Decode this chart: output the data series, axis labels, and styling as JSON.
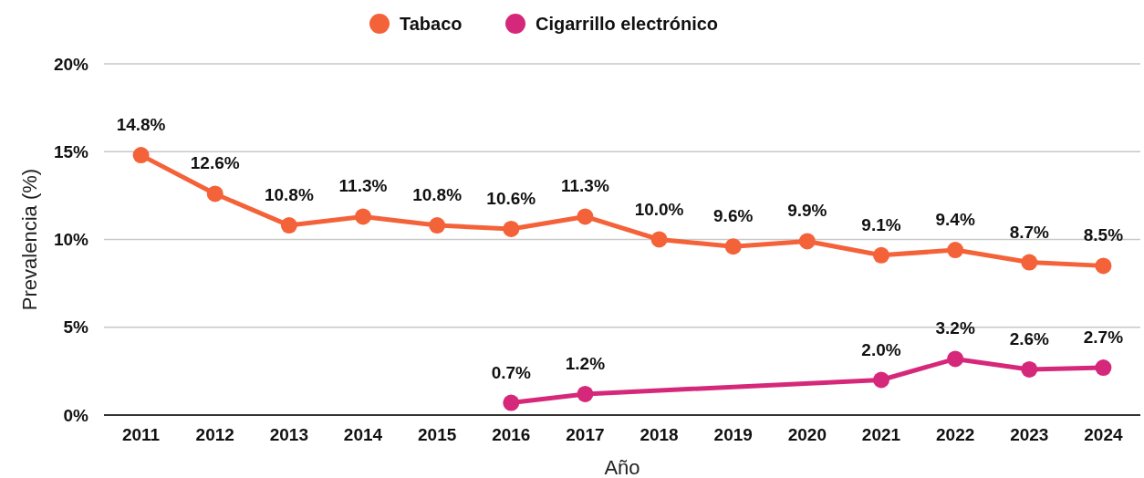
{
  "chart_data": {
    "type": "line",
    "xlabel": "Año",
    "ylabel": "Prevalencia (%)",
    "x": [
      2011,
      2012,
      2013,
      2014,
      2015,
      2016,
      2017,
      2018,
      2019,
      2020,
      2021,
      2022,
      2023,
      2024
    ],
    "xlim": [
      2010.5,
      2024.5
    ],
    "xticks": [
      2011,
      2012,
      2013,
      2014,
      2015,
      2016,
      2017,
      2018,
      2019,
      2020,
      2021,
      2022,
      2023,
      2024
    ],
    "ylim": [
      0,
      20
    ],
    "yticks": [
      {
        "value": 0,
        "label": "0%"
      },
      {
        "value": 5,
        "label": "5%"
      },
      {
        "value": 10,
        "label": "10%"
      },
      {
        "value": 15,
        "label": "15%"
      },
      {
        "value": 20,
        "label": "20%"
      }
    ],
    "series": [
      {
        "name": "Tabaco",
        "color": "#f4623a",
        "values": [
          14.8,
          12.6,
          10.8,
          11.3,
          10.8,
          10.6,
          11.3,
          10.0,
          9.6,
          9.9,
          9.1,
          9.4,
          8.7,
          8.5
        ],
        "value_labels": [
          "14.8%",
          "12.6%",
          "10.8%",
          "11.3%",
          "10.8%",
          "10.6%",
          "11.3%",
          "10.0%",
          "9.6%",
          "9.9%",
          "9.1%",
          "9.4%",
          "8.7%",
          "8.5%"
        ]
      },
      {
        "name": "Cigarrillo electrónico",
        "color": "#d6287a",
        "x": [
          2016,
          2017,
          2021,
          2022,
          2023,
          2024
        ],
        "values": [
          0.7,
          1.2,
          2.0,
          3.2,
          2.6,
          2.7
        ],
        "value_labels": [
          "0.7%",
          "1.2%",
          "2.0%",
          "3.2%",
          "2.6%",
          "2.7%"
        ]
      }
    ],
    "grid": "y",
    "legend": "top",
    "marker": "circle",
    "line_style": "solid"
  }
}
